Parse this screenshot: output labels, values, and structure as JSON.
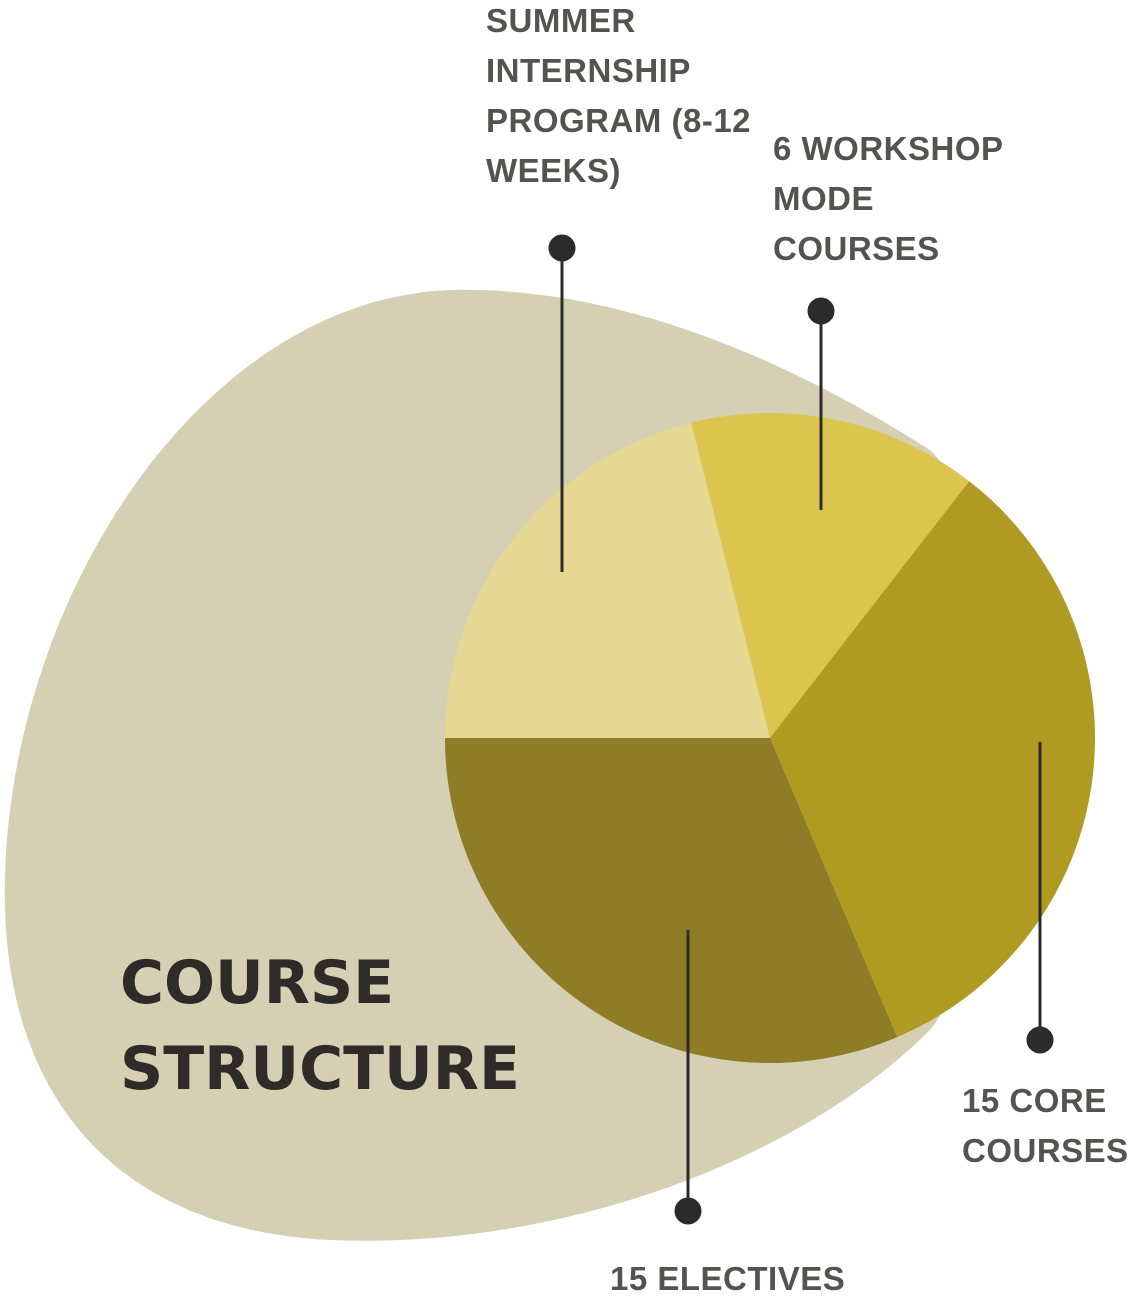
{
  "chart_data": {
    "type": "pie",
    "title": "COURSE STRUCTURE",
    "categories": [
      "SUMMER INTERNSHIP PROGRAM (8-12 WEEKS)",
      "6 WORKSHOP MODE COURSES",
      "15 CORE COURSES",
      "15 ELECTIVES"
    ],
    "values": [
      21.1,
      14.4,
      33.1,
      31.4
    ],
    "colors": [
      "#e6d892",
      "#dcc54f",
      "#b09b22",
      "#8f7c27"
    ]
  }
}
